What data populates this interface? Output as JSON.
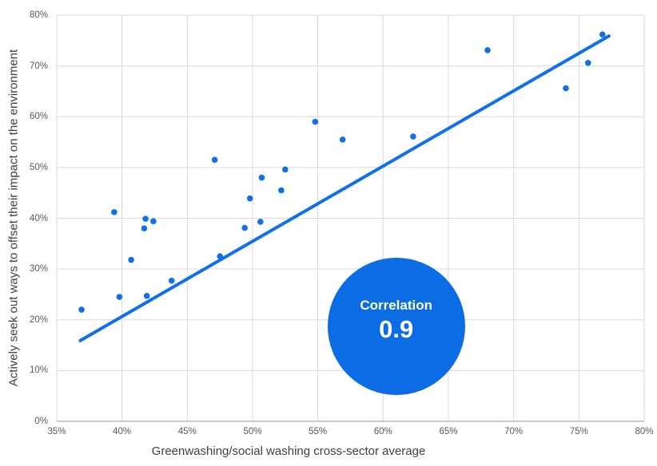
{
  "chart_data": {
    "type": "scatter",
    "xlabel": "Greenwashing/social washing cross-sector average",
    "ylabel": "Actively seek out ways to offset their impact on the environment",
    "xlim": [
      35,
      80
    ],
    "ylim": [
      0,
      80
    ],
    "xticks": [
      35,
      40,
      45,
      50,
      55,
      60,
      65,
      70,
      75,
      80
    ],
    "yticks": [
      0,
      10,
      20,
      30,
      40,
      50,
      60,
      70,
      80
    ],
    "tick_suffix": "%",
    "grid": true,
    "legend": "none",
    "points": [
      [
        36.9,
        22.0
      ],
      [
        39.4,
        41.2
      ],
      [
        39.8,
        24.5
      ],
      [
        40.7,
        31.8
      ],
      [
        41.7,
        38.0
      ],
      [
        41.8,
        39.9
      ],
      [
        41.9,
        24.7
      ],
      [
        42.4,
        39.4
      ],
      [
        43.8,
        27.7
      ],
      [
        47.1,
        51.5
      ],
      [
        47.5,
        32.5
      ],
      [
        49.4,
        38.1
      ],
      [
        49.8,
        43.9
      ],
      [
        50.6,
        39.3
      ],
      [
        50.7,
        48.0
      ],
      [
        52.2,
        45.5
      ],
      [
        52.5,
        49.6
      ],
      [
        54.8,
        59.0
      ],
      [
        56.9,
        55.5
      ],
      [
        62.3,
        56.1
      ],
      [
        68.0,
        73.1
      ],
      [
        74.0,
        65.6
      ],
      [
        75.7,
        70.6
      ],
      [
        76.8,
        76.2
      ]
    ],
    "trendline": {
      "x1": 36.8,
      "y1": 15.9,
      "x2": 77.3,
      "y2": 75.9
    },
    "annotation": {
      "label": "Correlation",
      "value": "0.9",
      "x": 61.0,
      "y": 18.7,
      "radius_px": 86
    },
    "colors": {
      "point": "#1170E8",
      "trend": "#1170E8",
      "bubble": "#0B6CE4",
      "bubble_text": "#FFFFFF",
      "grid": "#D9D9D9",
      "axis": "#9A9A9A",
      "tick_text": "#595959",
      "title_text": "#3F3F3F"
    }
  }
}
